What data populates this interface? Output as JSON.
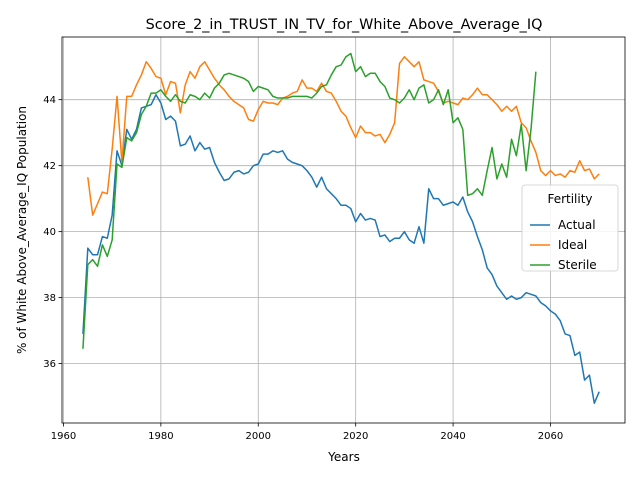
{
  "chart_data": {
    "type": "line",
    "title": "Score_2_in_TRUST_IN_TV_for_White_Above_Average_IQ",
    "xlabel": "Years",
    "ylabel": "% of White Above_Average_IQ Population",
    "xlim": [
      1959.7,
      2075.3
    ],
    "ylim": [
      34.2,
      45.9
    ],
    "x_ticks": [
      1960,
      1980,
      2000,
      2020,
      2040,
      2060
    ],
    "y_ticks": [
      36,
      38,
      40,
      42,
      44
    ],
    "grid": true,
    "legend": {
      "title": "Fertility",
      "placement": "center-right",
      "entries": [
        "Actual",
        "Ideal",
        "Sterile"
      ]
    },
    "series": [
      {
        "name": "Actual",
        "color": "#1f77b4",
        "points": [
          [
            1964,
            36.9
          ],
          [
            1965,
            39.5
          ],
          [
            1966,
            39.3
          ],
          [
            1967,
            39.3
          ],
          [
            1968,
            39.85
          ],
          [
            1969,
            39.8
          ],
          [
            1970,
            40.5
          ],
          [
            1971,
            42.45
          ],
          [
            1972,
            42.0
          ],
          [
            1973,
            43.1
          ],
          [
            1974,
            42.8
          ],
          [
            1975,
            43.1
          ],
          [
            1976,
            43.75
          ],
          [
            1977,
            43.8
          ],
          [
            1978,
            43.85
          ],
          [
            1979,
            44.15
          ],
          [
            1980,
            43.9
          ],
          [
            1981,
            43.4
          ],
          [
            1982,
            43.5
          ],
          [
            1983,
            43.35
          ],
          [
            1984,
            42.6
          ],
          [
            1985,
            42.65
          ],
          [
            1986,
            42.9
          ],
          [
            1987,
            42.45
          ],
          [
            1988,
            42.7
          ],
          [
            1989,
            42.5
          ],
          [
            1990,
            42.55
          ],
          [
            1991,
            42.1
          ],
          [
            1992,
            41.8
          ],
          [
            1993,
            41.55
          ],
          [
            1994,
            41.6
          ],
          [
            1995,
            41.8
          ],
          [
            1996,
            41.85
          ],
          [
            1997,
            41.75
          ],
          [
            1998,
            41.8
          ],
          [
            1999,
            42.0
          ],
          [
            2000,
            42.05
          ],
          [
            2001,
            42.35
          ],
          [
            2002,
            42.35
          ],
          [
            2003,
            42.45
          ],
          [
            2004,
            42.4
          ],
          [
            2005,
            42.45
          ],
          [
            2006,
            42.2
          ],
          [
            2007,
            42.1
          ],
          [
            2008,
            42.05
          ],
          [
            2009,
            42.0
          ],
          [
            2010,
            41.85
          ],
          [
            2011,
            41.65
          ],
          [
            2012,
            41.35
          ],
          [
            2013,
            41.65
          ],
          [
            2014,
            41.3
          ],
          [
            2015,
            41.15
          ],
          [
            2016,
            41.0
          ],
          [
            2017,
            40.8
          ],
          [
            2018,
            40.8
          ],
          [
            2019,
            40.7
          ],
          [
            2020,
            40.3
          ],
          [
            2021,
            40.55
          ],
          [
            2022,
            40.35
          ],
          [
            2023,
            40.4
          ],
          [
            2024,
            40.35
          ],
          [
            2025,
            39.85
          ],
          [
            2026,
            39.9
          ],
          [
            2027,
            39.7
          ],
          [
            2028,
            39.8
          ],
          [
            2029,
            39.8
          ],
          [
            2030,
            40.0
          ],
          [
            2031,
            39.75
          ],
          [
            2032,
            39.65
          ],
          [
            2033,
            40.15
          ],
          [
            2034,
            39.65
          ],
          [
            2035,
            41.3
          ],
          [
            2036,
            41.0
          ],
          [
            2037,
            41.0
          ],
          [
            2038,
            40.8
          ],
          [
            2039,
            40.85
          ],
          [
            2040,
            40.9
          ],
          [
            2041,
            40.8
          ],
          [
            2042,
            41.05
          ],
          [
            2043,
            40.6
          ],
          [
            2044,
            40.3
          ],
          [
            2045,
            39.85
          ],
          [
            2046,
            39.45
          ],
          [
            2047,
            38.9
          ],
          [
            2048,
            38.7
          ],
          [
            2049,
            38.35
          ],
          [
            2050,
            38.15
          ],
          [
            2051,
            37.95
          ],
          [
            2052,
            38.05
          ],
          [
            2053,
            37.95
          ],
          [
            2054,
            38.0
          ],
          [
            2055,
            38.15
          ],
          [
            2056,
            38.1
          ],
          [
            2057,
            38.05
          ],
          [
            2058,
            37.85
          ],
          [
            2059,
            37.75
          ],
          [
            2060,
            37.6
          ],
          [
            2061,
            37.5
          ],
          [
            2062,
            37.3
          ],
          [
            2063,
            36.9
          ],
          [
            2064,
            36.85
          ],
          [
            2065,
            36.25
          ],
          [
            2066,
            36.35
          ],
          [
            2067,
            35.5
          ],
          [
            2068,
            35.65
          ],
          [
            2069,
            34.8
          ],
          [
            2070,
            35.15
          ]
        ]
      },
      {
        "name": "Ideal",
        "color": "#ff7f0e",
        "points": [
          [
            1965,
            41.65
          ],
          [
            1966,
            40.5
          ],
          [
            1967,
            40.85
          ],
          [
            1968,
            41.2
          ],
          [
            1969,
            41.15
          ],
          [
            1970,
            42.5
          ],
          [
            1971,
            44.1
          ],
          [
            1972,
            42.1
          ],
          [
            1973,
            44.1
          ],
          [
            1974,
            44.1
          ],
          [
            1975,
            44.45
          ],
          [
            1976,
            44.75
          ],
          [
            1977,
            45.15
          ],
          [
            1978,
            44.95
          ],
          [
            1979,
            44.7
          ],
          [
            1980,
            44.65
          ],
          [
            1981,
            44.15
          ],
          [
            1982,
            44.55
          ],
          [
            1983,
            44.5
          ],
          [
            1984,
            43.6
          ],
          [
            1985,
            44.45
          ],
          [
            1986,
            44.85
          ],
          [
            1987,
            44.65
          ],
          [
            1988,
            45.0
          ],
          [
            1989,
            45.15
          ],
          [
            1990,
            44.9
          ],
          [
            1991,
            44.65
          ],
          [
            1992,
            44.45
          ],
          [
            1993,
            44.3
          ],
          [
            1994,
            44.1
          ],
          [
            1995,
            43.95
          ],
          [
            1996,
            43.85
          ],
          [
            1997,
            43.75
          ],
          [
            1998,
            43.4
          ],
          [
            1999,
            43.35
          ],
          [
            2000,
            43.7
          ],
          [
            2001,
            43.95
          ],
          [
            2002,
            43.9
          ],
          [
            2003,
            43.9
          ],
          [
            2004,
            43.85
          ],
          [
            2005,
            44.05
          ],
          [
            2006,
            44.1
          ],
          [
            2007,
            44.2
          ],
          [
            2008,
            44.25
          ],
          [
            2009,
            44.6
          ],
          [
            2010,
            44.35
          ],
          [
            2011,
            44.35
          ],
          [
            2012,
            44.25
          ],
          [
            2013,
            44.5
          ],
          [
            2014,
            44.25
          ],
          [
            2015,
            44.2
          ],
          [
            2016,
            43.95
          ],
          [
            2017,
            43.65
          ],
          [
            2018,
            43.5
          ],
          [
            2019,
            43.15
          ],
          [
            2020,
            42.85
          ],
          [
            2021,
            43.2
          ],
          [
            2022,
            43.0
          ],
          [
            2023,
            43.0
          ],
          [
            2024,
            42.9
          ],
          [
            2025,
            42.95
          ],
          [
            2026,
            42.7
          ],
          [
            2027,
            42.95
          ],
          [
            2028,
            43.3
          ],
          [
            2029,
            45.1
          ],
          [
            2030,
            45.3
          ],
          [
            2031,
            45.15
          ],
          [
            2032,
            45.0
          ],
          [
            2033,
            45.15
          ],
          [
            2034,
            44.6
          ],
          [
            2035,
            44.55
          ],
          [
            2036,
            44.5
          ],
          [
            2037,
            44.25
          ],
          [
            2038,
            43.9
          ],
          [
            2039,
            43.95
          ],
          [
            2040,
            43.9
          ],
          [
            2041,
            43.85
          ],
          [
            2042,
            44.05
          ],
          [
            2043,
            44.0
          ],
          [
            2044,
            44.15
          ],
          [
            2045,
            44.35
          ],
          [
            2046,
            44.15
          ],
          [
            2047,
            44.15
          ],
          [
            2048,
            44.0
          ],
          [
            2049,
            43.85
          ],
          [
            2050,
            43.65
          ],
          [
            2051,
            43.8
          ],
          [
            2052,
            43.65
          ],
          [
            2053,
            43.8
          ],
          [
            2054,
            43.3
          ],
          [
            2055,
            43.15
          ],
          [
            2056,
            42.75
          ],
          [
            2057,
            42.4
          ],
          [
            2058,
            41.85
          ],
          [
            2059,
            41.7
          ],
          [
            2060,
            41.85
          ],
          [
            2061,
            41.7
          ],
          [
            2062,
            41.75
          ],
          [
            2063,
            41.65
          ],
          [
            2064,
            41.85
          ],
          [
            2065,
            41.8
          ],
          [
            2066,
            42.15
          ],
          [
            2067,
            41.85
          ],
          [
            2068,
            41.9
          ],
          [
            2069,
            41.6
          ],
          [
            2070,
            41.75
          ]
        ]
      },
      {
        "name": "Sterile",
        "color": "#2ca02c",
        "points": [
          [
            1964,
            36.45
          ],
          [
            1965,
            39.0
          ],
          [
            1966,
            39.15
          ],
          [
            1967,
            38.95
          ],
          [
            1968,
            39.6
          ],
          [
            1969,
            39.25
          ],
          [
            1970,
            39.75
          ],
          [
            1971,
            42.05
          ],
          [
            1972,
            41.95
          ],
          [
            1973,
            42.85
          ],
          [
            1974,
            42.75
          ],
          [
            1975,
            43.0
          ],
          [
            1976,
            43.55
          ],
          [
            1977,
            43.8
          ],
          [
            1978,
            44.2
          ],
          [
            1979,
            44.2
          ],
          [
            1980,
            44.3
          ],
          [
            1981,
            44.1
          ],
          [
            1982,
            43.95
          ],
          [
            1983,
            44.15
          ],
          [
            1984,
            43.95
          ],
          [
            1985,
            43.9
          ],
          [
            1986,
            44.15
          ],
          [
            1987,
            44.1
          ],
          [
            1988,
            44.0
          ],
          [
            1989,
            44.2
          ],
          [
            1990,
            44.05
          ],
          [
            1991,
            44.35
          ],
          [
            1992,
            44.5
          ],
          [
            1993,
            44.75
          ],
          [
            1994,
            44.8
          ],
          [
            1995,
            44.75
          ],
          [
            1996,
            44.7
          ],
          [
            1997,
            44.65
          ],
          [
            1998,
            44.55
          ],
          [
            1999,
            44.25
          ],
          [
            2000,
            44.4
          ],
          [
            2001,
            44.35
          ],
          [
            2002,
            44.3
          ],
          [
            2003,
            44.1
          ],
          [
            2004,
            44.05
          ],
          [
            2005,
            44.05
          ],
          [
            2006,
            44.05
          ],
          [
            2007,
            44.1
          ],
          [
            2008,
            44.1
          ],
          [
            2009,
            44.1
          ],
          [
            2010,
            44.1
          ],
          [
            2011,
            44.05
          ],
          [
            2012,
            44.2
          ],
          [
            2013,
            44.4
          ],
          [
            2014,
            44.45
          ],
          [
            2015,
            44.75
          ],
          [
            2016,
            45.0
          ],
          [
            2017,
            45.05
          ],
          [
            2018,
            45.3
          ],
          [
            2019,
            45.4
          ],
          [
            2020,
            44.85
          ],
          [
            2021,
            45.0
          ],
          [
            2022,
            44.7
          ],
          [
            2023,
            44.8
          ],
          [
            2024,
            44.8
          ],
          [
            2025,
            44.55
          ],
          [
            2026,
            44.4
          ],
          [
            2027,
            44.05
          ],
          [
            2028,
            44.0
          ],
          [
            2029,
            43.9
          ],
          [
            2030,
            44.05
          ],
          [
            2031,
            44.3
          ],
          [
            2032,
            44.0
          ],
          [
            2033,
            44.35
          ],
          [
            2034,
            44.45
          ],
          [
            2035,
            43.9
          ],
          [
            2036,
            44.0
          ],
          [
            2037,
            44.3
          ],
          [
            2038,
            43.85
          ],
          [
            2039,
            44.3
          ],
          [
            2040,
            43.3
          ],
          [
            2041,
            43.45
          ],
          [
            2042,
            43.1
          ],
          [
            2043,
            41.1
          ],
          [
            2044,
            41.15
          ],
          [
            2045,
            41.3
          ],
          [
            2046,
            41.1
          ],
          [
            2047,
            41.85
          ],
          [
            2048,
            42.55
          ],
          [
            2049,
            41.6
          ],
          [
            2050,
            42.05
          ],
          [
            2051,
            41.65
          ],
          [
            2052,
            42.8
          ],
          [
            2053,
            42.3
          ],
          [
            2054,
            43.25
          ],
          [
            2055,
            41.85
          ],
          [
            2056,
            43.1
          ],
          [
            2057,
            44.85
          ]
        ]
      }
    ]
  }
}
